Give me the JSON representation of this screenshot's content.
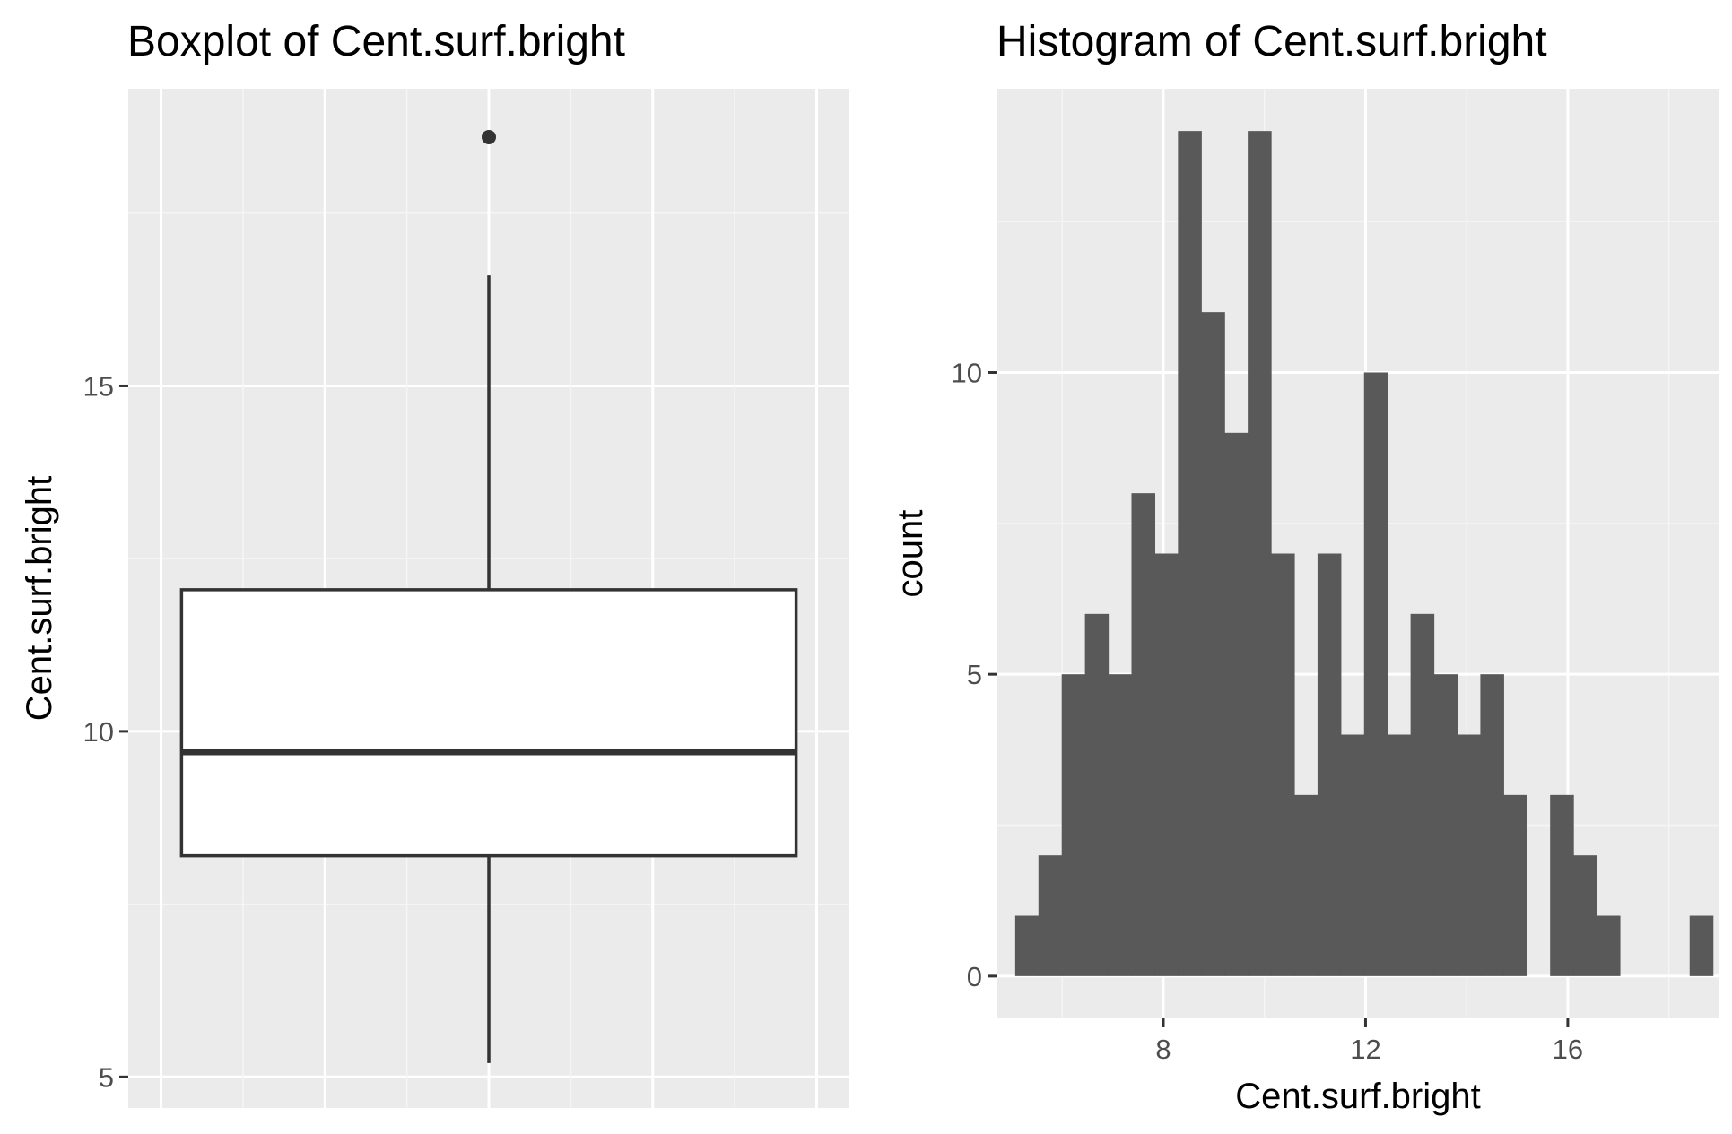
{
  "colors": {
    "panel_background": "#EBEBEB",
    "grid_major": "#FFFFFF",
    "grid_minor": "#F5F5F5",
    "bar_fill": "#595959",
    "box_line": "#333333",
    "box_fill": "#FFFFFF",
    "tick_text": "#4D4D4D"
  },
  "chart_data": [
    {
      "type": "box",
      "title": "Boxplot of Cent.surf.bright",
      "xlabel": "",
      "ylabel": "Cent.surf.bright",
      "ylim": [
        4.55,
        19.3
      ],
      "yticks": [
        5,
        10,
        15
      ],
      "x_tick_labels": [],
      "grid": true,
      "stats": {
        "min": 5.2,
        "q1": 8.2,
        "median": 9.7,
        "q3": 12.05,
        "max": 16.6
      },
      "outliers": [
        18.6
      ]
    },
    {
      "type": "bar",
      "subtype": "histogram",
      "title": "Histogram of Cent.surf.bright",
      "xlabel": "Cent.surf.bright",
      "ylabel": "count",
      "xlim": [
        4.7,
        19.0
      ],
      "ylim": [
        -0.7,
        14.7
      ],
      "xticks": [
        8,
        12,
        16
      ],
      "yticks": [
        0,
        5,
        10
      ],
      "grid": true,
      "bin_width": 0.46,
      "bins": [
        {
          "x0": 5.07,
          "count": 1
        },
        {
          "x0": 5.53,
          "count": 2
        },
        {
          "x0": 5.99,
          "count": 5
        },
        {
          "x0": 6.45,
          "count": 6
        },
        {
          "x0": 6.91,
          "count": 5
        },
        {
          "x0": 7.37,
          "count": 8
        },
        {
          "x0": 7.83,
          "count": 7
        },
        {
          "x0": 8.29,
          "count": 14
        },
        {
          "x0": 8.75,
          "count": 11
        },
        {
          "x0": 9.21,
          "count": 9
        },
        {
          "x0": 9.67,
          "count": 14
        },
        {
          "x0": 10.13,
          "count": 7
        },
        {
          "x0": 10.59,
          "count": 3
        },
        {
          "x0": 11.05,
          "count": 7
        },
        {
          "x0": 11.51,
          "count": 4
        },
        {
          "x0": 11.97,
          "count": 10
        },
        {
          "x0": 12.43,
          "count": 4
        },
        {
          "x0": 12.89,
          "count": 6
        },
        {
          "x0": 13.35,
          "count": 5
        },
        {
          "x0": 13.81,
          "count": 4
        },
        {
          "x0": 14.27,
          "count": 5
        },
        {
          "x0": 14.73,
          "count": 3
        },
        {
          "x0": 15.19,
          "count": 0
        },
        {
          "x0": 15.65,
          "count": 3
        },
        {
          "x0": 16.11,
          "count": 2
        },
        {
          "x0": 16.57,
          "count": 1
        },
        {
          "x0": 17.03,
          "count": 0
        },
        {
          "x0": 17.49,
          "count": 0
        },
        {
          "x0": 17.95,
          "count": 0
        },
        {
          "x0": 18.41,
          "count": 1
        }
      ]
    }
  ]
}
